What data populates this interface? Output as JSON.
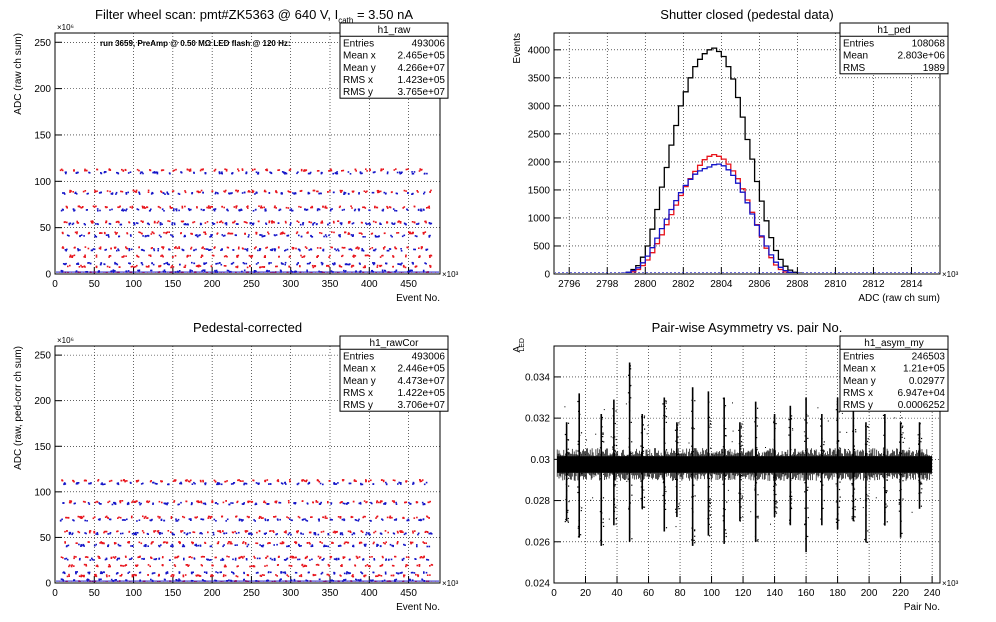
{
  "colors": {
    "black": "#000000",
    "red": "#e8141c",
    "blue": "#1414c8",
    "grid": "#000000",
    "background": "#ffffff"
  },
  "chart_data": [
    {
      "id": "raw",
      "type": "scatter",
      "title": "Filter wheel scan: pmt#ZK5363 @   640 V, I",
      "title_sub": "cath",
      "title_tail": " = 3.50 nA",
      "annotation": "run 3659, PreAmp @ 0.50 MΩ LED flash @  120 Hz:",
      "xlabel": "Event No.",
      "ylabel": "ADC (raw ch sum)",
      "xlim": [
        0,
        490
      ],
      "ylim": [
        0,
        260
      ],
      "x_multiplier": "×10³",
      "y_multiplier": "×10⁶",
      "xticks": [
        0,
        50,
        100,
        150,
        200,
        250,
        300,
        350,
        400,
        450
      ],
      "yticks": [
        0,
        50,
        100,
        150,
        200,
        250
      ],
      "grid": true,
      "stats": {
        "name": "h1_raw",
        "rows": [
          [
            "Entries",
            "493006"
          ],
          [
            "Mean x",
            "2.465e+05"
          ],
          [
            "Mean y",
            "4.266e+07"
          ],
          [
            "RMS x",
            "1.423e+05"
          ],
          [
            "RMS y",
            "3.765e+07"
          ]
        ]
      },
      "pattern": {
        "x_start": 5,
        "x_period": 13.5,
        "x_end": 470,
        "levels": [
          {
            "y": 113,
            "color": "red"
          },
          {
            "y": 110,
            "color": "blue"
          },
          {
            "y": 90,
            "color": "red"
          },
          {
            "y": 88,
            "color": "blue"
          },
          {
            "y": 73,
            "color": "red"
          },
          {
            "y": 70,
            "color": "blue"
          },
          {
            "y": 57,
            "color": "red"
          },
          {
            "y": 55,
            "color": "blue"
          },
          {
            "y": 45,
            "color": "red"
          },
          {
            "y": 42,
            "color": "blue"
          },
          {
            "y": 29,
            "color": "red"
          },
          {
            "y": 27,
            "color": "blue"
          },
          {
            "y": 20,
            "color": "red"
          },
          {
            "y": 12,
            "color": "blue"
          },
          {
            "y": 9,
            "color": "red"
          },
          {
            "y": 4,
            "color": "blue"
          },
          {
            "y": 2,
            "color": "red"
          }
        ]
      }
    },
    {
      "id": "ped",
      "type": "histogram",
      "title": "Shutter closed (pedestal data)",
      "xlabel": "ADC (raw ch sum)",
      "ylabel": "Events",
      "xlim": [
        2795.2,
        2815.5
      ],
      "ylim": [
        0,
        4300
      ],
      "x_multiplier": "×10³",
      "xticks": [
        2796,
        2798,
        2800,
        2802,
        2804,
        2806,
        2808,
        2810,
        2812,
        2814
      ],
      "yticks": [
        0,
        500,
        1000,
        1500,
        2000,
        2500,
        3000,
        3500,
        4000
      ],
      "grid": true,
      "stats": {
        "name": "h1_ped",
        "rows": [
          [
            "Entries",
            "108068"
          ],
          [
            "Mean",
            "2.803e+06"
          ],
          [
            "RMS",
            "1989"
          ]
        ]
      },
      "bins": {
        "x0": 2795.5,
        "width": 0.25
      },
      "series": [
        {
          "name": "",
          "color": "black",
          "values": [
            0,
            0,
            0,
            0,
            0,
            0,
            0,
            0,
            0,
            0,
            0,
            0,
            5,
            10,
            30,
            80,
            150,
            300,
            500,
            800,
            1150,
            1550,
            1900,
            2300,
            2650,
            3000,
            3250,
            3500,
            3700,
            3830,
            3930,
            4000,
            4030,
            3970,
            3880,
            3700,
            3480,
            3150,
            2800,
            2400,
            2050,
            1650,
            1300,
            950,
            650,
            420,
            260,
            140,
            70,
            30,
            15,
            5,
            0,
            0,
            0,
            0,
            0,
            0,
            0,
            0,
            0,
            0,
            0,
            0,
            0,
            0,
            0,
            0,
            0,
            0,
            0,
            0,
            0,
            0,
            0,
            0,
            0,
            0,
            0,
            0,
            0
          ]
        },
        {
          "name": "",
          "color": "red",
          "values": [
            0,
            0,
            0,
            0,
            0,
            0,
            0,
            0,
            0,
            0,
            0,
            0,
            5,
            10,
            20,
            40,
            80,
            150,
            250,
            380,
            540,
            700,
            880,
            1060,
            1230,
            1400,
            1560,
            1700,
            1830,
            1940,
            2040,
            2100,
            2130,
            2100,
            2050,
            1960,
            1840,
            1700,
            1520,
            1320,
            1100,
            880,
            660,
            460,
            290,
            160,
            80,
            35,
            15,
            5,
            0,
            0,
            0,
            0,
            0,
            0,
            0,
            0,
            0,
            0,
            0,
            0,
            0,
            0,
            0,
            0,
            0,
            0,
            0,
            0,
            0,
            0,
            0,
            0,
            0,
            0,
            0,
            0,
            0,
            0,
            0
          ]
        },
        {
          "name": "",
          "color": "blue",
          "values": [
            0,
            0,
            0,
            0,
            0,
            0,
            0,
            0,
            0,
            0,
            0,
            0,
            5,
            15,
            30,
            60,
            110,
            200,
            320,
            470,
            640,
            810,
            980,
            1150,
            1310,
            1450,
            1580,
            1690,
            1780,
            1840,
            1880,
            1910,
            1950,
            1960,
            1930,
            1860,
            1760,
            1620,
            1460,
            1270,
            1070,
            870,
            680,
            500,
            340,
            210,
            120,
            60,
            30,
            10,
            5,
            0,
            0,
            0,
            0,
            0,
            0,
            0,
            0,
            0,
            0,
            0,
            0,
            0,
            0,
            0,
            0,
            0,
            0,
            0,
            0,
            0,
            0,
            0,
            0,
            0,
            0,
            0,
            0,
            0,
            0
          ]
        }
      ]
    },
    {
      "id": "rawCor",
      "type": "scatter",
      "title": "Pedestal-corrected",
      "xlabel": "Event No.",
      "ylabel": "ADC (raw, ped-corr ch sum)",
      "xlim": [
        0,
        490
      ],
      "ylim": [
        0,
        260
      ],
      "x_multiplier": "×10³",
      "y_multiplier": "×10⁶",
      "xticks": [
        0,
        50,
        100,
        150,
        200,
        250,
        300,
        350,
        400,
        450
      ],
      "yticks": [
        0,
        50,
        100,
        150,
        200,
        250
      ],
      "grid": true,
      "stats": {
        "name": "h1_rawCor",
        "rows": [
          [
            "Entries",
            "493006"
          ],
          [
            "Mean x",
            "2.446e+05"
          ],
          [
            "Mean y",
            "4.473e+07"
          ],
          [
            "RMS x",
            "1.422e+05"
          ],
          [
            "RMS y",
            "3.706e+07"
          ]
        ]
      },
      "pattern": {
        "x_start": 5,
        "x_period": 13.5,
        "x_end": 470,
        "levels": [
          {
            "y": 113,
            "color": "red"
          },
          {
            "y": 110,
            "color": "blue"
          },
          {
            "y": 90,
            "color": "red"
          },
          {
            "y": 88,
            "color": "blue"
          },
          {
            "y": 73,
            "color": "red"
          },
          {
            "y": 70,
            "color": "blue"
          },
          {
            "y": 57,
            "color": "red"
          },
          {
            "y": 55,
            "color": "blue"
          },
          {
            "y": 45,
            "color": "red"
          },
          {
            "y": 42,
            "color": "blue"
          },
          {
            "y": 29,
            "color": "red"
          },
          {
            "y": 27,
            "color": "blue"
          },
          {
            "y": 20,
            "color": "red"
          },
          {
            "y": 12,
            "color": "blue"
          },
          {
            "y": 9,
            "color": "red"
          },
          {
            "y": 4,
            "color": "blue"
          },
          {
            "y": 2,
            "color": "red"
          }
        ]
      }
    },
    {
      "id": "asym",
      "type": "scatter",
      "title": "Pair-wise Asymmetry vs. pair No.",
      "xlabel": "Pair No.",
      "ylabel": "A",
      "ylabel_sub": "LED",
      "xlim": [
        0,
        245
      ],
      "ylim": [
        0.024,
        0.0355
      ],
      "x_multiplier": "×10³",
      "xticks": [
        0,
        20,
        40,
        60,
        80,
        100,
        120,
        140,
        160,
        180,
        200,
        220,
        240
      ],
      "yticks": [
        0.024,
        0.026,
        0.028,
        0.03,
        0.032,
        0.034
      ],
      "grid": true,
      "stats": {
        "name": "h1_asym_my",
        "rows": [
          [
            "Entries",
            "246503"
          ],
          [
            "Mean x",
            "1.21e+05"
          ],
          [
            "Mean y",
            "0.02977"
          ],
          [
            "RMS x",
            "6.947e+04"
          ],
          [
            "RMS y",
            "0.0006252"
          ]
        ]
      },
      "band": {
        "x_start": 2,
        "x_end": 240,
        "center": 0.02975,
        "half_width": 0.0004
      },
      "spikes": [
        {
          "x": 8,
          "ymin": 0.027,
          "ymax": 0.0318
        },
        {
          "x": 16,
          "ymin": 0.0262,
          "ymax": 0.0332
        },
        {
          "x": 30,
          "ymin": 0.0258,
          "ymax": 0.0322
        },
        {
          "x": 38,
          "ymin": 0.0268,
          "ymax": 0.0329
        },
        {
          "x": 48,
          "ymin": 0.026,
          "ymax": 0.0347
        },
        {
          "x": 56,
          "ymin": 0.0276,
          "ymax": 0.0322
        },
        {
          "x": 70,
          "ymin": 0.0265,
          "ymax": 0.033
        },
        {
          "x": 78,
          "ymin": 0.0272,
          "ymax": 0.0318
        },
        {
          "x": 88,
          "ymin": 0.0258,
          "ymax": 0.0335
        },
        {
          "x": 98,
          "ymin": 0.0263,
          "ymax": 0.0333
        },
        {
          "x": 108,
          "ymin": 0.0259,
          "ymax": 0.033
        },
        {
          "x": 118,
          "ymin": 0.027,
          "ymax": 0.0318
        },
        {
          "x": 128,
          "ymin": 0.026,
          "ymax": 0.0328
        },
        {
          "x": 140,
          "ymin": 0.0272,
          "ymax": 0.0322
        },
        {
          "x": 150,
          "ymin": 0.0268,
          "ymax": 0.0326
        },
        {
          "x": 160,
          "ymin": 0.0255,
          "ymax": 0.033
        },
        {
          "x": 170,
          "ymin": 0.0268,
          "ymax": 0.0322
        },
        {
          "x": 180,
          "ymin": 0.0266,
          "ymax": 0.033
        },
        {
          "x": 190,
          "ymin": 0.027,
          "ymax": 0.0324
        },
        {
          "x": 198,
          "ymin": 0.026,
          "ymax": 0.0318
        },
        {
          "x": 210,
          "ymin": 0.0268,
          "ymax": 0.0322
        },
        {
          "x": 220,
          "ymin": 0.0262,
          "ymax": 0.0318
        },
        {
          "x": 232,
          "ymin": 0.0276,
          "ymax": 0.0318
        }
      ]
    }
  ]
}
